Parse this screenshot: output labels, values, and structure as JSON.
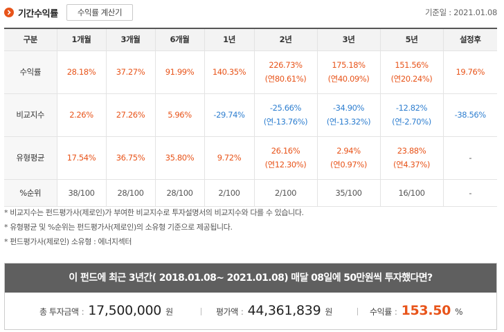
{
  "header": {
    "title": "기간수익률",
    "calc_button": "수익률 계산기",
    "base_date": "기준일 : 2021.01.08"
  },
  "table": {
    "columns": [
      "구분",
      "1개월",
      "3개월",
      "6개월",
      "1년",
      "2년",
      "3년",
      "5년",
      "설정후"
    ],
    "rows": [
      {
        "label": "수익률",
        "cells": [
          {
            "value": "28.18%",
            "sub": "",
            "tone": "pos"
          },
          {
            "value": "37.27%",
            "sub": "",
            "tone": "pos"
          },
          {
            "value": "91.99%",
            "sub": "",
            "tone": "pos"
          },
          {
            "value": "140.35%",
            "sub": "",
            "tone": "pos"
          },
          {
            "value": "226.73%",
            "sub": "(연80.61%)",
            "tone": "pos"
          },
          {
            "value": "175.18%",
            "sub": "(연40.09%)",
            "tone": "pos"
          },
          {
            "value": "151.56%",
            "sub": "(연20.24%)",
            "tone": "pos"
          },
          {
            "value": "19.76%",
            "sub": "",
            "tone": "pos"
          }
        ]
      },
      {
        "label": "비교지수",
        "cells": [
          {
            "value": "2.26%",
            "sub": "",
            "tone": "pos"
          },
          {
            "value": "27.26%",
            "sub": "",
            "tone": "pos"
          },
          {
            "value": "5.96%",
            "sub": "",
            "tone": "pos"
          },
          {
            "value": "-29.74%",
            "sub": "",
            "tone": "neg"
          },
          {
            "value": "-25.66%",
            "sub": "(연-13.76%)",
            "tone": "neg"
          },
          {
            "value": "-34.90%",
            "sub": "(연-13.32%)",
            "tone": "neg"
          },
          {
            "value": "-12.82%",
            "sub": "(연-2.70%)",
            "tone": "neg"
          },
          {
            "value": "-38.56%",
            "sub": "",
            "tone": "neg"
          }
        ]
      },
      {
        "label": "유형평균",
        "cells": [
          {
            "value": "17.54%",
            "sub": "",
            "tone": "pos"
          },
          {
            "value": "36.75%",
            "sub": "",
            "tone": "pos"
          },
          {
            "value": "35.80%",
            "sub": "",
            "tone": "pos"
          },
          {
            "value": "9.72%",
            "sub": "",
            "tone": "pos"
          },
          {
            "value": "26.16%",
            "sub": "(연12.30%)",
            "tone": "pos"
          },
          {
            "value": "2.94%",
            "sub": "(연0.97%)",
            "tone": "pos"
          },
          {
            "value": "23.88%",
            "sub": "(연4.37%)",
            "tone": "pos"
          },
          {
            "value": "-",
            "sub": "",
            "tone": "neutral"
          }
        ]
      },
      {
        "label": "%순위",
        "cells": [
          {
            "value": "38/100",
            "sub": "",
            "tone": "neutral"
          },
          {
            "value": "28/100",
            "sub": "",
            "tone": "neutral"
          },
          {
            "value": "28/100",
            "sub": "",
            "tone": "neutral"
          },
          {
            "value": "2/100",
            "sub": "",
            "tone": "neutral"
          },
          {
            "value": "2/100",
            "sub": "",
            "tone": "neutral"
          },
          {
            "value": "35/100",
            "sub": "",
            "tone": "neutral"
          },
          {
            "value": "16/100",
            "sub": "",
            "tone": "neutral"
          },
          {
            "value": "-",
            "sub": "",
            "tone": "neutral"
          }
        ]
      }
    ]
  },
  "notes": [
    "* 비교지수는 펀드평가사(제로인)가 부여한 비교지수로 투자설명서의 비교지수와 다를 수 있습니다.",
    "* 유형평균 및 %순위는 펀드평가사(제로인)의 소유형 기준으로 제공됩니다.",
    "* 펀드평가사(제로인) 소유형 : 에너지섹터"
  ],
  "simulation": {
    "title": "이 펀드에 최근 3년간( 2018.01.08~ 2021.01.08) 매달 08일에 50만원씩 투자했다면?",
    "total_invest_label": "총 투자금액",
    "total_invest_value": "17,500,000",
    "total_invest_unit": "원",
    "eval_label": "평가액",
    "eval_value": "44,361,839",
    "eval_unit": "원",
    "return_label": "수익률",
    "return_value": "153.50",
    "return_unit": "%",
    "separator": ":",
    "accent_color": "#e8541a"
  },
  "colors": {
    "positive": "#e8541a",
    "negative": "#2f7fd0",
    "header_bar": "#5f5f5f"
  },
  "icons": {
    "header_icon": "chevron-right-icon"
  }
}
